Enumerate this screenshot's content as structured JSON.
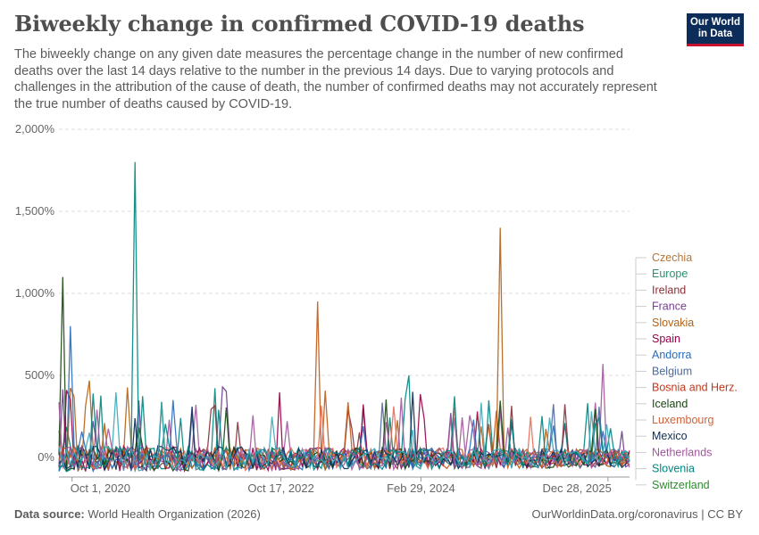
{
  "header": {
    "title": "Biweekly change in confirmed COVID-19 deaths",
    "subtitle": "The biweekly change on any given date measures the percentage change in the number of new confirmed deaths over the last 14 days relative to the number in the previous 14 days. Due to varying protocols and challenges in the attribution of the cause of death, the number of confirmed deaths may not accurately represent the true number of deaths caused by COVID-19."
  },
  "logo": {
    "line1": "Our World",
    "line2": "in Data"
  },
  "footer": {
    "source_label": "Data source:",
    "source_text": "World Health Organization (2026)",
    "url_text": "OurWorldinData.org/coronavirus | CC BY"
  },
  "chart_data": {
    "type": "line",
    "title": "Biweekly change in confirmed COVID-19 deaths",
    "ylabel": "",
    "xlabel": "",
    "ylim": [
      -100,
      2000
    ],
    "y_ticks": [
      0,
      500,
      1000,
      1500,
      2000
    ],
    "y_tick_labels": [
      "0%",
      "500%",
      "1,000%",
      "1,500%",
      "2,000%"
    ],
    "x_range": [
      "2020-08-15",
      "2026-03-15"
    ],
    "x_ticks": [
      "2020-10-01",
      "2022-10-17",
      "2024-02-29",
      "2025-12-28"
    ],
    "x_tick_labels": [
      "Oct 1, 2020",
      "Oct 17, 2022",
      "Feb 29, 2024",
      "Dec 28, 2025"
    ],
    "grid": true,
    "legend_position": "right",
    "series": [
      {
        "name": "Czechia",
        "color": "#a2559c"
      },
      {
        "name": "Europe",
        "color": "#00847e"
      },
      {
        "name": "Ireland",
        "color": "#883039"
      },
      {
        "name": "France",
        "color": "#6d3e91"
      },
      {
        "name": "Slovakia",
        "color": "#b16214"
      },
      {
        "name": "Spain",
        "color": "#970046"
      },
      {
        "name": "Andorra",
        "color": "#286bbb"
      },
      {
        "name": "Belgium",
        "color": "#4c6a9c"
      },
      {
        "name": "Bosnia and Herz.",
        "color": "#c05917"
      },
      {
        "name": "Iceland",
        "color": "#18470f"
      },
      {
        "name": "Luxembourg",
        "color": "#e56e5a"
      },
      {
        "name": "Mexico",
        "color": "#0c2d59"
      },
      {
        "name": "Netherlands",
        "color": "#a2559c"
      },
      {
        "name": "Slovenia",
        "color": "#00847e"
      },
      {
        "name": "Switzerland",
        "color": "#38aaba"
      }
    ],
    "legend_colors": [
      "#b8753a",
      "#2f8f6f",
      "#883039",
      "#7a3e91",
      "#b16214",
      "#970046",
      "#286bbb",
      "#4c6a9c",
      "#c0391b",
      "#18470f",
      "#d0633a",
      "#0c2d59",
      "#a2559c",
      "#00847e",
      "#2e8b2e"
    ],
    "peaks": [
      {
        "series": "Slovenia",
        "date": "2021-05-20",
        "value": 1800
      },
      {
        "series": "Slovakia",
        "date": "2024-12-10",
        "value": 1400
      },
      {
        "series": "Iceland",
        "date": "2020-09-01",
        "value": 1100
      },
      {
        "series": "Bosnia and Herz.",
        "date": "2023-02-20",
        "value": 950
      },
      {
        "series": "Andorra",
        "date": "2020-09-30",
        "value": 800
      },
      {
        "series": "Czechia",
        "date": "2025-12-05",
        "value": 570
      },
      {
        "series": "Europe",
        "date": "2024-01-20",
        "value": 500
      },
      {
        "series": "Mexico",
        "date": "2024-01-30",
        "value": 400
      }
    ]
  }
}
